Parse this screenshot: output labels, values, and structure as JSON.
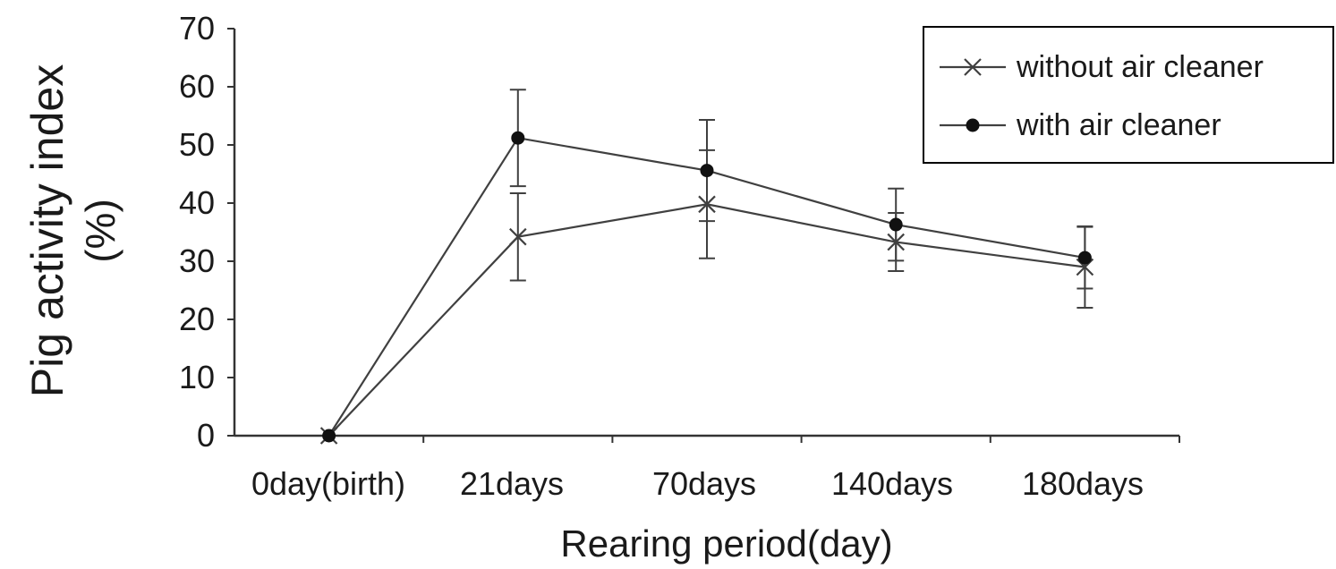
{
  "chart_data": {
    "type": "line",
    "title": "",
    "xlabel": "Rearing period(day)",
    "ylabel": "Pig activity index",
    "ylabel_unit": "(%)",
    "categories": [
      "0day(birth)",
      "21days",
      "70days",
      "140days",
      "180days"
    ],
    "ylim": [
      0,
      70
    ],
    "yticks": [
      0,
      10,
      20,
      30,
      40,
      50,
      60,
      70
    ],
    "grid": false,
    "legend_position": "top-right",
    "series": [
      {
        "name": "without air cleaner",
        "marker": "x",
        "values": [
          0,
          34.2,
          39.8,
          33.3,
          29.0
        ],
        "errors": [
          0,
          7.5,
          9.3,
          5.0,
          7.0
        ]
      },
      {
        "name": "with air cleaner",
        "marker": "circle",
        "values": [
          0,
          51.2,
          45.6,
          36.3,
          30.6
        ],
        "errors": [
          0,
          8.3,
          8.7,
          6.2,
          5.3
        ]
      }
    ],
    "colors": {
      "line": "#404040",
      "axis": "#333333",
      "text": "#1a1a1a"
    }
  }
}
